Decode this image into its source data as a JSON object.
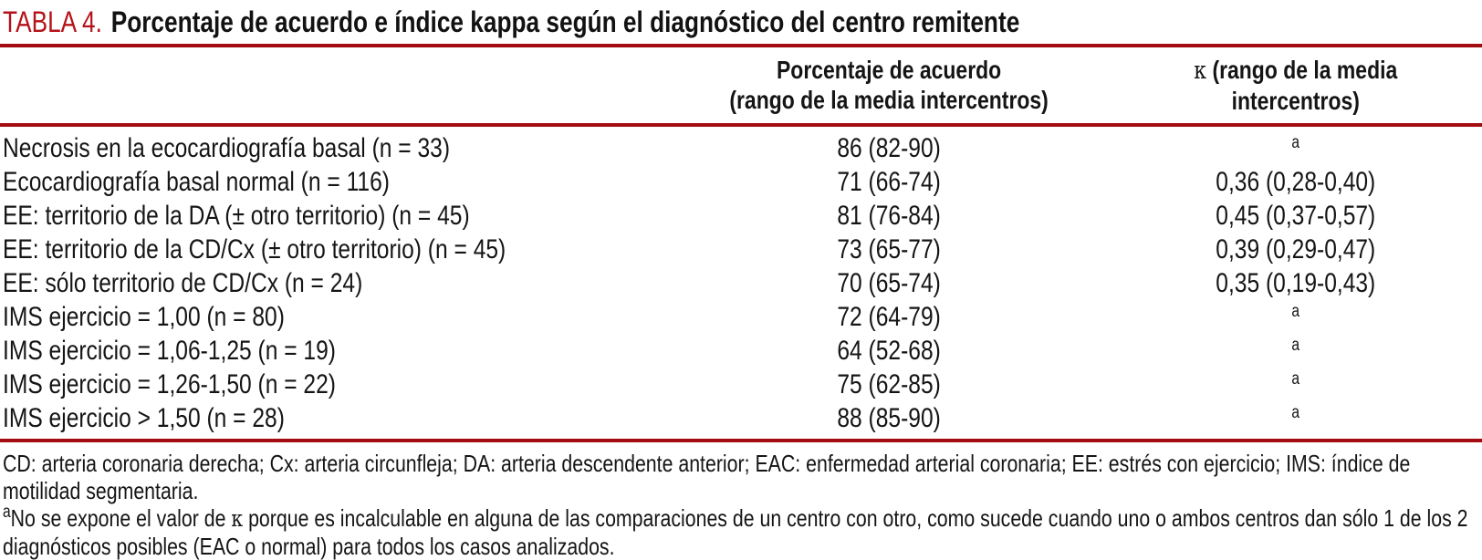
{
  "colors": {
    "rule_red": "#A30C11",
    "title_red": "#B5121A"
  },
  "title": {
    "label": "TABLA 4.",
    "text": "Porcentaje de acuerdo e índice kappa según el diagnóstico del centro remitente"
  },
  "table": {
    "header": {
      "acuerdo_line1": "Porcentaje de acuerdo",
      "acuerdo_line2": "(rango de la media intercentros)",
      "kappa_symbol": "κ",
      "kappa_line1_rest": " (rango de la media",
      "kappa_line2": "intercentros)"
    },
    "rows": [
      {
        "label": "Necrosis en la ecocardiografía basal (n = 33)",
        "acuerdo": "86 (82-90)",
        "kappa": "",
        "kappa_sup": "a"
      },
      {
        "label": "Ecocardiografía basal normal (n = 116)",
        "acuerdo": "71 (66-74)",
        "kappa": "0,36 (0,28-0,40)",
        "kappa_sup": ""
      },
      {
        "label": "EE: territorio de la DA (± otro territorio) (n = 45)",
        "acuerdo": "81 (76-84)",
        "kappa": "0,45 (0,37-0,57)",
        "kappa_sup": ""
      },
      {
        "label": "EE: territorio de la CD/Cx (± otro territorio) (n = 45)",
        "acuerdo": "73 (65-77)",
        "kappa": "0,39 (0,29-0,47)",
        "kappa_sup": ""
      },
      {
        "label": "EE: sólo territorio de CD/Cx (n = 24)",
        "acuerdo": "70 (65-74)",
        "kappa": "0,35 (0,19-0,43)",
        "kappa_sup": ""
      },
      {
        "label": "IMS ejercicio = 1,00 (n = 80)",
        "acuerdo": "72 (64-79)",
        "kappa": "",
        "kappa_sup": "a"
      },
      {
        "label": "IMS ejercicio = 1,06-1,25 (n = 19)",
        "acuerdo": "64 (52-68)",
        "kappa": "",
        "kappa_sup": "a"
      },
      {
        "label": "IMS ejercicio = 1,26-1,50 (n = 22)",
        "acuerdo": "75 (62-85)",
        "kappa": "",
        "kappa_sup": "a"
      },
      {
        "label": "IMS ejercicio > 1,50 (n = 28)",
        "acuerdo": "88 (85-90)",
        "kappa": "",
        "kappa_sup": "a"
      }
    ]
  },
  "footnotes": {
    "abbreviations": "CD: arteria coronaria derecha; Cx: arteria circunfleja; DA: arteria descendente anterior; EAC: enfermedad arterial coronaria; EE: estrés con ejercicio; IMS: índice de motilidad segmentaria.",
    "note_a_sup": "a",
    "note_a_part1": "No se expone el valor de ",
    "note_a_kappa": "κ",
    "note_a_part2": " porque es incalculable en alguna de las comparaciones de un centro con otro, como sucede cuando uno o ambos centros dan sólo 1 de los 2 diagnósticos posibles (EAC o normal) para todos los casos analizados."
  }
}
